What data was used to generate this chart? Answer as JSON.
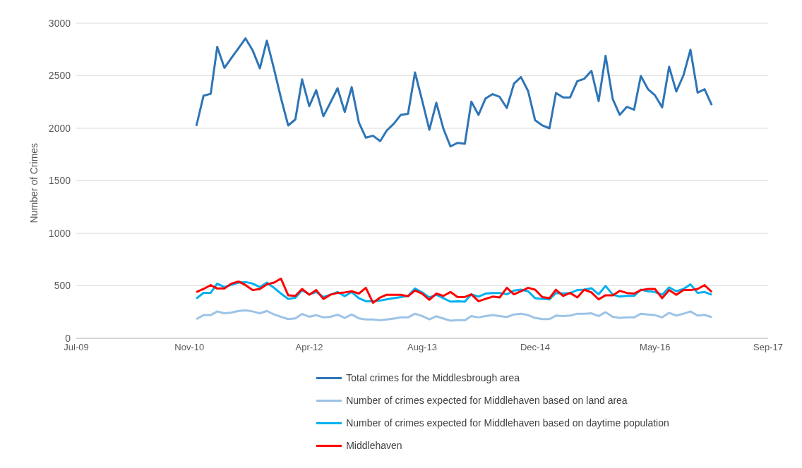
{
  "chart_data": {
    "type": "line",
    "ylabel": "Number of Crimes",
    "x": [
      "2010-12",
      "2011-01",
      "2011-02",
      "2011-03",
      "2011-04",
      "2011-05",
      "2011-06",
      "2011-07",
      "2011-08",
      "2011-09",
      "2011-10",
      "2011-11",
      "2011-12",
      "2012-01",
      "2012-02",
      "2012-03",
      "2012-04",
      "2012-05",
      "2012-06",
      "2012-07",
      "2012-08",
      "2012-09",
      "2012-10",
      "2012-11",
      "2012-12",
      "2013-01",
      "2013-02",
      "2013-03",
      "2013-04",
      "2013-05",
      "2013-06",
      "2013-07",
      "2013-08",
      "2013-09",
      "2013-10",
      "2013-11",
      "2013-12",
      "2014-01",
      "2014-02",
      "2014-03",
      "2014-04",
      "2014-05",
      "2014-06",
      "2014-07",
      "2014-08",
      "2014-09",
      "2014-10",
      "2014-11",
      "2014-12",
      "2015-01",
      "2015-02",
      "2015-03",
      "2015-04",
      "2015-05",
      "2015-06",
      "2015-07",
      "2015-08",
      "2015-09",
      "2015-10",
      "2015-11",
      "2015-12",
      "2016-01",
      "2016-02",
      "2016-03",
      "2016-04",
      "2016-05",
      "2016-06",
      "2016-07",
      "2016-08",
      "2016-09",
      "2016-10",
      "2016-11",
      "2016-12",
      "2017-01"
    ],
    "series": [
      {
        "name": "Total crimes for the Middlesbrough area",
        "color": "#2e75b6",
        "values": [
          2022,
          2310,
          2328,
          2775,
          2575,
          2668,
          2763,
          2856,
          2741,
          2571,
          2834,
          2564,
          2288,
          2027,
          2084,
          2465,
          2210,
          2363,
          2115,
          2243,
          2381,
          2155,
          2392,
          2055,
          1911,
          1929,
          1878,
          1978,
          2044,
          2128,
          2137,
          2531,
          2265,
          1985,
          2243,
          1993,
          1827,
          1861,
          1852,
          2254,
          2128,
          2283,
          2325,
          2299,
          2193,
          2425,
          2487,
          2354,
          2077,
          2027,
          2000,
          2336,
          2294,
          2294,
          2449,
          2471,
          2547,
          2259,
          2690,
          2277,
          2128,
          2204,
          2177,
          2498,
          2372,
          2314,
          2199,
          2586,
          2350,
          2505,
          2748,
          2339,
          2372,
          2221
        ]
      },
      {
        "name": "Number of crimes expected for Middlehaven based on land area",
        "color": "#9dc3e6",
        "values": [
          183,
          221,
          221,
          256,
          238,
          245,
          260,
          267,
          256,
          238,
          260,
          227,
          205,
          183,
          190,
          232,
          205,
          221,
          199,
          205,
          225,
          194,
          227,
          190,
          179,
          179,
          172,
          179,
          188,
          199,
          199,
          234,
          212,
          181,
          210,
          188,
          168,
          172,
          172,
          212,
          199,
          212,
          221,
          212,
          203,
          227,
          234,
          221,
          194,
          183,
          183,
          216,
          212,
          216,
          234,
          234,
          238,
          212,
          249,
          205,
          194,
          199,
          199,
          234,
          227,
          221,
          199,
          243,
          216,
          234,
          256,
          216,
          223,
          201
        ]
      },
      {
        "name": "Number of crimes expected for Middlehaven based on daytime population",
        "color": "#00b0f0",
        "values": [
          378,
          433,
          433,
          521,
          488,
          510,
          530,
          536,
          521,
          488,
          530,
          481,
          426,
          375,
          386,
          459,
          419,
          441,
          393,
          415,
          441,
          402,
          441,
          382,
          353,
          353,
          360,
          371,
          382,
          393,
          404,
          474,
          437,
          389,
          415,
          382,
          349,
          353,
          349,
          419,
          397,
          426,
          432,
          432,
          419,
          455,
          463,
          448,
          382,
          375,
          371,
          432,
          426,
          432,
          459,
          463,
          477,
          419,
          499,
          415,
          397,
          404,
          404,
          463,
          448,
          441,
          415,
          485,
          448,
          470,
          514,
          432,
          441,
          415
        ]
      },
      {
        "name": "Middlehaven",
        "color": "#ff0000",
        "values": [
          441,
          470,
          507,
          474,
          474,
          521,
          541,
          507,
          459,
          470,
          514,
          530,
          569,
          410,
          404,
          470,
          415,
          459,
          375,
          415,
          432,
          437,
          448,
          426,
          481,
          338,
          389,
          415,
          415,
          415,
          400,
          455,
          426,
          366,
          426,
          404,
          441,
          393,
          393,
          419,
          353,
          375,
          397,
          389,
          481,
          419,
          448,
          481,
          463,
          393,
          382,
          463,
          404,
          432,
          389,
          463,
          437,
          371,
          410,
          410,
          452,
          432,
          426,
          459,
          470,
          470,
          382,
          459,
          415,
          459,
          459,
          470,
          507,
          441
        ]
      }
    ],
    "xlim": [
      "2009-07-01",
      "2017-09-01"
    ],
    "xticks": [
      {
        "value": "2009-07-01",
        "label": "Jul-09"
      },
      {
        "value": "2010-11-01",
        "label": "Nov-10"
      },
      {
        "value": "2012-04-01",
        "label": "Apr-12"
      },
      {
        "value": "2013-08-01",
        "label": "Aug-13"
      },
      {
        "value": "2014-12-01",
        "label": "Dec-14"
      },
      {
        "value": "2016-05-01",
        "label": "May-16"
      },
      {
        "value": "2017-09-01",
        "label": "Sep-17"
      }
    ],
    "ylim": [
      0,
      3000
    ],
    "yticks": [
      0,
      500,
      1000,
      1500,
      2000,
      2500,
      3000
    ],
    "grid": "y",
    "legend": "bottom",
    "marker": "none",
    "line_style": "solid"
  }
}
